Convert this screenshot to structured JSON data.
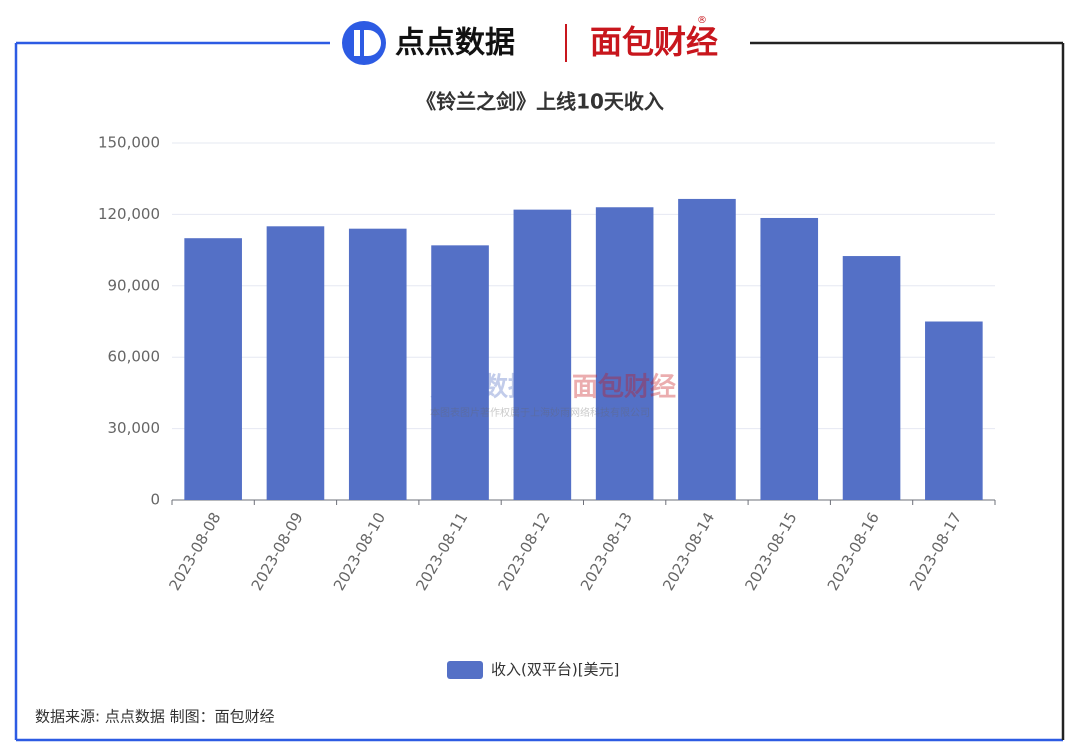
{
  "header": {
    "brand": "点点数据",
    "partner": "面包财经",
    "registered_mark": "®"
  },
  "chart_data": {
    "type": "bar",
    "title": "《铃兰之剑》上线10天收入",
    "categories": [
      "2023-08-08",
      "2023-08-09",
      "2023-08-10",
      "2023-08-11",
      "2023-08-12",
      "2023-08-13",
      "2023-08-14",
      "2023-08-15",
      "2023-08-16",
      "2023-08-17"
    ],
    "series": [
      {
        "name": "收入(双平台)[美元]",
        "color": "#5470c6",
        "values": [
          110000,
          115000,
          114000,
          107000,
          122000,
          123000,
          126500,
          118500,
          102500,
          75000
        ]
      }
    ],
    "ylim": [
      0,
      150000
    ],
    "yticks": [
      0,
      {
        "value": 30000,
        "label": "30,000"
      },
      {
        "value": 60000,
        "label": "60,000"
      },
      {
        "value": 90000,
        "label": "90,000"
      },
      {
        "value": 120000,
        "label": "120,000"
      },
      {
        "value": 150000,
        "label": "150,000"
      }
    ],
    "grid": true,
    "legend": "bottom"
  },
  "watermark": {
    "brand": "点点数据",
    "partner": "面包财经",
    "notice": "本图表图片著作权属于上海妙雨网络科技有限公司"
  },
  "footer": {
    "source": "数据来源: 点点数据 制图：面包财经"
  }
}
